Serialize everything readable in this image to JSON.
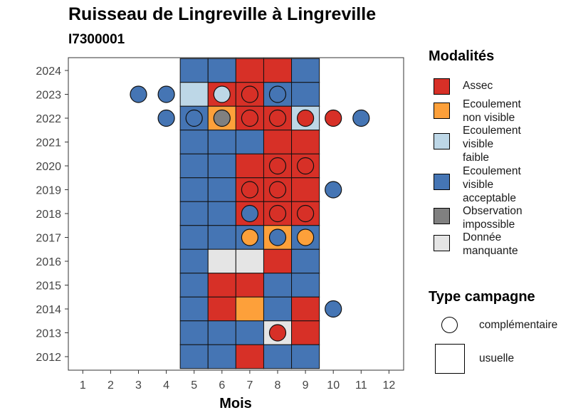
{
  "chart_data": {
    "type": "heatmap",
    "title": "Ruisseau de Lingreville à Lingreville",
    "subtitle": "I7300001",
    "xlabel": "Mois",
    "ylabel": "",
    "x_ticks": [
      1,
      2,
      3,
      4,
      5,
      6,
      7,
      8,
      9,
      10,
      11,
      12
    ],
    "y_ticks": [
      2012,
      2013,
      2014,
      2015,
      2016,
      2017,
      2018,
      2019,
      2020,
      2021,
      2022,
      2023,
      2024
    ],
    "grid": false,
    "legend_position": "right",
    "modalites": [
      {
        "key": "assec",
        "label": "Assec",
        "color": "#D73027"
      },
      {
        "key": "nonvisible",
        "label": "Ecoulement\nnon visible",
        "color": "#FDA03A"
      },
      {
        "key": "faible",
        "label": "Ecoulement\nvisible\nfaible",
        "color": "#BDD7E7"
      },
      {
        "key": "acceptable",
        "label": "Ecoulement\nvisible\nacceptable",
        "color": "#4575B4"
      },
      {
        "key": "impossible",
        "label": "Observation\nimpossible",
        "color": "#808080"
      },
      {
        "key": "manquante",
        "label": "Donnée\nmanquante",
        "color": "#E5E5E5"
      }
    ],
    "legend_modalites_title": "Modalités",
    "legend_type_title": "Type campagne",
    "type_campagne": [
      {
        "key": "complementaire",
        "label": "complémentaire",
        "shape": "circle"
      },
      {
        "key": "usuelle",
        "label": "usuelle",
        "shape": "square"
      }
    ],
    "usuelle": [
      {
        "year": 2024,
        "values": {
          "5": "acceptable",
          "6": "acceptable",
          "7": "assec",
          "8": "assec",
          "9": "acceptable"
        }
      },
      {
        "year": 2023,
        "values": {
          "5": "faible",
          "6": "assec",
          "7": "assec",
          "8": "acceptable",
          "9": "acceptable"
        }
      },
      {
        "year": 2022,
        "values": {
          "5": "acceptable",
          "6": "nonvisible",
          "7": "assec",
          "8": "assec",
          "9": "faible"
        }
      },
      {
        "year": 2021,
        "values": {
          "5": "acceptable",
          "6": "acceptable",
          "7": "acceptable",
          "8": "assec",
          "9": "assec"
        }
      },
      {
        "year": 2020,
        "values": {
          "5": "acceptable",
          "6": "acceptable",
          "7": "assec",
          "8": "assec",
          "9": "assec"
        }
      },
      {
        "year": 2019,
        "values": {
          "5": "acceptable",
          "6": "acceptable",
          "7": "assec",
          "8": "assec",
          "9": "assec"
        }
      },
      {
        "year": 2018,
        "values": {
          "5": "acceptable",
          "6": "acceptable",
          "7": "assec",
          "8": "assec",
          "9": "assec"
        }
      },
      {
        "year": 2017,
        "values": {
          "5": "acceptable",
          "6": "acceptable",
          "7": "acceptable",
          "8": "nonvisible",
          "9": "acceptable"
        }
      },
      {
        "year": 2016,
        "values": {
          "5": "acceptable",
          "6": "manquante",
          "7": "manquante",
          "8": "assec",
          "9": "acceptable"
        }
      },
      {
        "year": 2015,
        "values": {
          "5": "acceptable",
          "6": "assec",
          "7": "assec",
          "8": "acceptable",
          "9": "acceptable"
        }
      },
      {
        "year": 2014,
        "values": {
          "5": "acceptable",
          "6": "assec",
          "7": "nonvisible",
          "8": "acceptable",
          "9": "assec"
        }
      },
      {
        "year": 2013,
        "values": {
          "5": "acceptable",
          "6": "acceptable",
          "7": "acceptable",
          "8": "manquante",
          "9": "assec"
        }
      },
      {
        "year": 2012,
        "values": {
          "5": "acceptable",
          "6": "acceptable",
          "7": "assec",
          "8": "acceptable",
          "9": "acceptable"
        }
      }
    ],
    "complementaire": [
      {
        "year": 2023,
        "month": 3,
        "value": "acceptable"
      },
      {
        "year": 2023,
        "month": 4,
        "value": "acceptable"
      },
      {
        "year": 2023,
        "month": 6,
        "value": "faible"
      },
      {
        "year": 2023,
        "month": 7,
        "value": "assec"
      },
      {
        "year": 2023,
        "month": 8,
        "value": "acceptable"
      },
      {
        "year": 2022,
        "month": 4,
        "value": "acceptable"
      },
      {
        "year": 2022,
        "month": 5,
        "value": "acceptable"
      },
      {
        "year": 2022,
        "month": 6,
        "value": "impossible"
      },
      {
        "year": 2022,
        "month": 7,
        "value": "assec"
      },
      {
        "year": 2022,
        "month": 8,
        "value": "assec"
      },
      {
        "year": 2022,
        "month": 9,
        "value": "assec"
      },
      {
        "year": 2022,
        "month": 10,
        "value": "assec"
      },
      {
        "year": 2022,
        "month": 11,
        "value": "acceptable"
      },
      {
        "year": 2020,
        "month": 8,
        "value": "assec"
      },
      {
        "year": 2020,
        "month": 9,
        "value": "assec"
      },
      {
        "year": 2019,
        "month": 7,
        "value": "assec"
      },
      {
        "year": 2019,
        "month": 8,
        "value": "assec"
      },
      {
        "year": 2019,
        "month": 10,
        "value": "acceptable"
      },
      {
        "year": 2018,
        "month": 7,
        "value": "acceptable"
      },
      {
        "year": 2018,
        "month": 8,
        "value": "assec"
      },
      {
        "year": 2018,
        "month": 9,
        "value": "assec"
      },
      {
        "year": 2017,
        "month": 7,
        "value": "nonvisible"
      },
      {
        "year": 2017,
        "month": 8,
        "value": "acceptable"
      },
      {
        "year": 2017,
        "month": 9,
        "value": "nonvisible"
      },
      {
        "year": 2014,
        "month": 10,
        "value": "acceptable"
      },
      {
        "year": 2013,
        "month": 8,
        "value": "assec"
      }
    ]
  }
}
